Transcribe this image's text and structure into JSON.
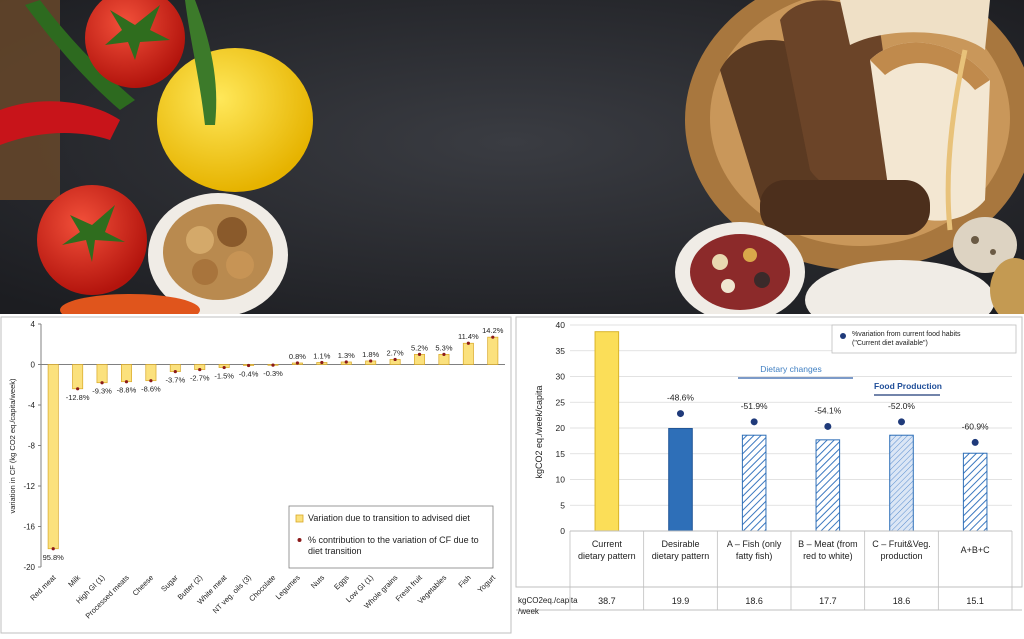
{
  "chart_data": [
    {
      "type": "bar",
      "ylabel": "variation in CF (kg CO2 eq./capita/week)",
      "ylim": [
        -20,
        4
      ],
      "yticks": [
        "4",
        "0",
        "-4",
        "-8",
        "-12",
        "-16",
        "-20"
      ],
      "categories": [
        "Red meat",
        "Milk",
        "High GI (1)",
        "Processed meats",
        "Cheese",
        "Sugar",
        "Butter (2)",
        "White meat",
        "NT veg. oils (3)",
        "Chocolate",
        "Legumes",
        "Nuts",
        "Eggs",
        "Low GI (1)",
        "Whole grains",
        "Fresh fruit",
        "Vegetables",
        "Fish",
        "Yogurt"
      ],
      "series": [
        {
          "name": "Variation due to transition to advised diet",
          "values": [
            -18.2,
            -2.4,
            -1.8,
            -1.7,
            -1.6,
            -0.7,
            -0.5,
            -0.3,
            -0.1,
            -0.06,
            0.15,
            0.2,
            0.25,
            0.35,
            0.5,
            1.0,
            1.0,
            2.1,
            2.7
          ]
        },
        {
          "name": "% contribution to the variation of CF due to diet transition",
          "labels": [
            "95.8%",
            "-12.8%",
            "-9.3%",
            "-8.8%",
            "-8.6%",
            "-3.7%",
            "-2.7%",
            "-1.5%",
            "-0.4%",
            "-0.3%",
            "0.8%",
            "1.1%",
            "1.3%",
            "1.8%",
            "2.7%",
            "5.2%",
            "5.3%",
            "11.4%",
            "14.2%"
          ]
        }
      ],
      "legend_position": "bottom-right",
      "grid": false
    },
    {
      "type": "bar",
      "ylabel": "kgCO2 eq./week/capita",
      "ylim": [
        0,
        40
      ],
      "yticks": [
        "40",
        "35",
        "30",
        "25",
        "20",
        "15",
        "10",
        "5",
        "0"
      ],
      "categories": [
        "Current dietary pattern",
        "Desirable dietary pattern",
        "A – Fish (only fatty fish)",
        "B – Meat (from red to white)",
        "C – Fruit&Veg. production",
        "A+B+C"
      ],
      "values": [
        38.7,
        19.9,
        18.6,
        17.7,
        18.6,
        15.1
      ],
      "value_labels": [
        "38.7",
        "19.9",
        "18.6",
        "17.7",
        "18.6",
        "15.1"
      ],
      "points": [
        null,
        22.8,
        21.2,
        20.3,
        21.2,
        17.2
      ],
      "point_labels": [
        "",
        "-48.6%",
        "-51.9%",
        "-54.1%",
        "-52.0%",
        "-60.9%"
      ],
      "legend": "%variation from current food habits (\"Current diet available\")",
      "legend_position": "top-right",
      "annotations": [
        "Dietary changes",
        "Food Production"
      ],
      "table_header": "kgCO2eq./capita/week",
      "grid": true
    }
  ]
}
